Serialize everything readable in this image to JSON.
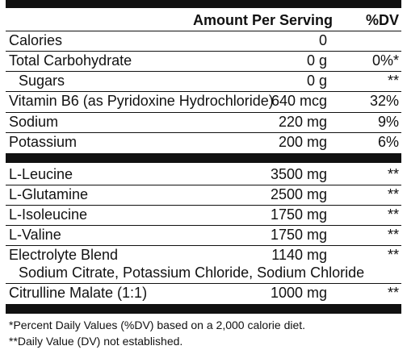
{
  "header": {
    "amount_label": "Amount Per Serving",
    "dv_label": "%DV"
  },
  "rows_top": [
    {
      "name": "Calories",
      "amount": "0",
      "dv": ""
    },
    {
      "name": "Total Carbohydrate",
      "amount": "0 g",
      "dv": "0%*"
    },
    {
      "name": "Sugars",
      "amount": "0 g",
      "dv": "**"
    },
    {
      "name": "Vitamin B6 (as Pyridoxine Hydrochloride)",
      "amount": "640 mcg",
      "dv": "32%"
    },
    {
      "name": "Sodium",
      "amount": "220 mg",
      "dv": "9%"
    },
    {
      "name": "Potassium",
      "amount": "200 mg",
      "dv": "6%"
    }
  ],
  "rows_bottom": [
    {
      "name": "L-Leucine",
      "amount": "3500 mg",
      "dv": "**"
    },
    {
      "name": "L-Glutamine",
      "amount": "2500 mg",
      "dv": "**"
    },
    {
      "name": "L-Isoleucine",
      "amount": "1750 mg",
      "dv": "**"
    },
    {
      "name": "L-Valine",
      "amount": "1750 mg",
      "dv": "**"
    },
    {
      "name": "Electrolyte Blend",
      "amount": "1140 mg",
      "dv": "**",
      "sub": "Sodium Citrate, Potassium Chloride, Sodium Chloride"
    },
    {
      "name": "Citrulline Malate (1:1)",
      "amount": "1000 mg",
      "dv": "**"
    }
  ],
  "footnotes": {
    "percent": "*Percent Daily Values (%DV) based on a 2,000 calorie diet.",
    "not_established": "**Daily Value (DV) not established."
  }
}
